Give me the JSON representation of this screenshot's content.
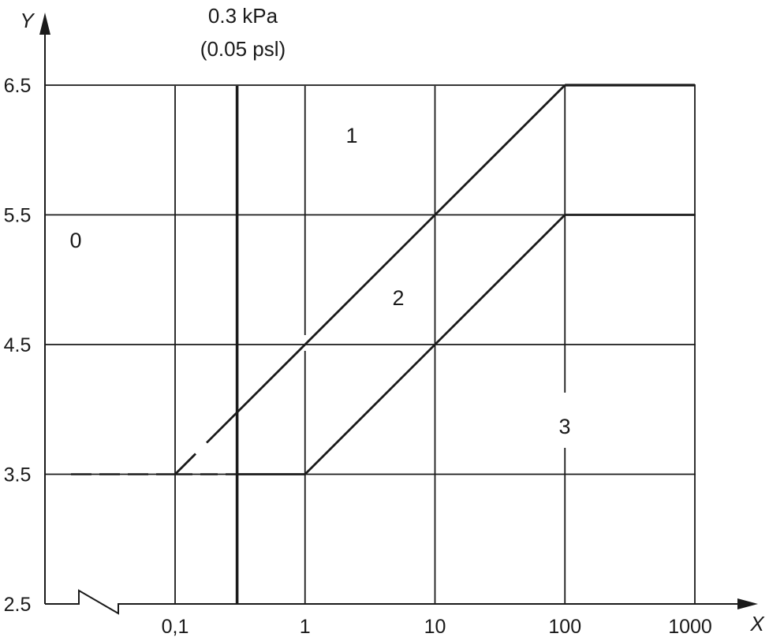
{
  "chart_data": {
    "type": "line",
    "xscale": "log",
    "xlabel": "X",
    "ylabel": "Y",
    "xlim": [
      0.1,
      1000
    ],
    "ylim": [
      2.5,
      6.5
    ],
    "x_ticks": [
      {
        "value": 0.1,
        "label": "0,1"
      },
      {
        "value": 1,
        "label": "1"
      },
      {
        "value": 10,
        "label": "10"
      },
      {
        "value": 100,
        "label": "100"
      },
      {
        "value": 1000,
        "label": "1000"
      }
    ],
    "y_ticks": [
      {
        "value": 2.5,
        "label": "2.5"
      },
      {
        "value": 3.5,
        "label": "3.5"
      },
      {
        "value": 4.5,
        "label": "4.5"
      },
      {
        "value": 5.5,
        "label": "5.5"
      },
      {
        "value": 6.5,
        "label": "6.5"
      }
    ],
    "grid": true,
    "axis_break_on_x": true,
    "reference_line": {
      "x": 0.3,
      "label_line1": "0.3 kPa",
      "label_line2": "(0.05 psl)"
    },
    "series": [
      {
        "points": [
          [
            0.1,
            3.5
          ],
          [
            100,
            6.5
          ],
          [
            1000,
            6.5
          ]
        ],
        "dashed_extension_to": 0.05,
        "dashed_segment_x": [
          0.15,
          0.27
        ]
      },
      {
        "points": [
          [
            0.3,
            3.5
          ],
          [
            1,
            3.5
          ],
          [
            100,
            5.5
          ],
          [
            1000,
            5.5
          ]
        ],
        "dashed_extension_from": 0.1
      }
    ],
    "region_labels": [
      {
        "label": "0",
        "x": 0.05,
        "y": 5.3
      },
      {
        "label": "1",
        "x": 2.2,
        "y": 6.1
      },
      {
        "label": "2",
        "x": 4,
        "y": 4.9
      },
      {
        "label": "3",
        "x": 100,
        "y": 3.85
      }
    ]
  }
}
